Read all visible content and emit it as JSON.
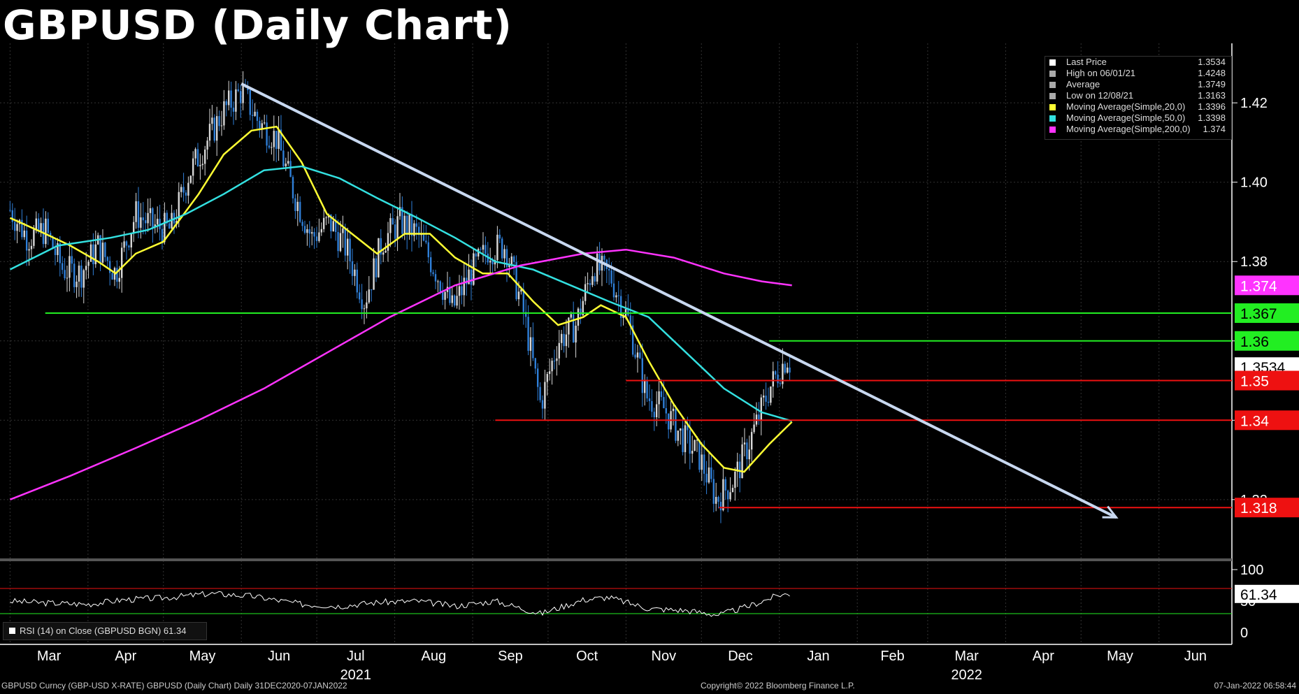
{
  "title": "GBPUSD (Daily Chart)",
  "chart_data": {
    "type": "candlestick",
    "title": "GBPUSD (Daily Chart)",
    "x_axis": {
      "months": [
        "Mar",
        "Apr",
        "May",
        "Jun",
        "Jul",
        "Aug",
        "Sep",
        "Oct",
        "Nov",
        "Dec",
        "Jan",
        "Feb",
        "Mar",
        "Apr",
        "May",
        "Jun"
      ],
      "years": [
        "2021",
        "2022"
      ]
    },
    "y_axis": {
      "ticks": [
        "1.42",
        "1.40",
        "1.38",
        "1.36",
        "1.34",
        "1.32"
      ],
      "range": [
        1.305,
        1.435
      ]
    },
    "legend": [
      {
        "name": "Last Price",
        "value": "1.3534",
        "color": "#ffffff"
      },
      {
        "name": "High on 06/01/21",
        "value": "1.4248",
        "color": "#aaaaaa"
      },
      {
        "name": "Average",
        "value": "1.3749",
        "color": "#aaaaaa"
      },
      {
        "name": "Low on 12/08/21",
        "value": "1.3163",
        "color": "#aaaaaa"
      },
      {
        "name": "Moving Average(Simple,20,0)",
        "value": "1.3396",
        "color": "#ffff33"
      },
      {
        "name": "Moving Average(Simple,50,0)",
        "value": "1.3398",
        "color": "#33e0e0"
      },
      {
        "name": "Moving Average(Simple,200,0)",
        "value": "1.374",
        "color": "#ff33ff"
      }
    ],
    "price_labels": [
      {
        "value": "1.374",
        "y": 1.374,
        "bg": "#ff33ff",
        "fg": "#ffffff"
      },
      {
        "value": "1.367",
        "y": 1.367,
        "bg": "#22ee22",
        "fg": "#000000"
      },
      {
        "value": "1.36",
        "y": 1.36,
        "bg": "#22ee22",
        "fg": "#000000"
      },
      {
        "value": "1.3534",
        "y": 1.3534,
        "bg": "#ffffff",
        "fg": "#000000"
      },
      {
        "value": "1.35",
        "y": 1.35,
        "bg": "#ee1111",
        "fg": "#ffffff"
      },
      {
        "value": "1.34",
        "y": 1.34,
        "bg": "#ee1111",
        "fg": "#ffffff"
      },
      {
        "value": "1.318",
        "y": 1.318,
        "bg": "#ee1111",
        "fg": "#ffffff"
      }
    ],
    "horizontal_levels": [
      {
        "y": 1.367,
        "x_from": "2021-03-15",
        "x_to": "2022-06-30",
        "color": "#22ee22"
      },
      {
        "y": 1.36,
        "x_from": "2021-12-28",
        "x_to": "2022-06-30",
        "color": "#22ee22"
      },
      {
        "y": 1.35,
        "x_from": "2021-11-01",
        "x_to": "2022-06-30",
        "color": "#ee1111"
      },
      {
        "y": 1.34,
        "x_from": "2021-09-10",
        "x_to": "2022-06-30",
        "color": "#ee1111"
      },
      {
        "y": 1.318,
        "x_from": "2021-12-08",
        "x_to": "2022-06-30",
        "color": "#ee1111"
      }
    ],
    "trendline": {
      "from": [
        "2021-06-01",
        1.4248
      ],
      "to": [
        "2022-05-15",
        1.3155
      ],
      "color": "#c8d8f0"
    },
    "series": [
      {
        "name": "Moving Average(Simple,20,0)",
        "color": "#ffff33",
        "points": [
          [
            "2021-03-01",
            1.391
          ],
          [
            "2021-03-15",
            1.387
          ],
          [
            "2021-03-25",
            1.384
          ],
          [
            "2021-04-05",
            1.38
          ],
          [
            "2021-04-12",
            1.377
          ],
          [
            "2021-04-20",
            1.382
          ],
          [
            "2021-05-01",
            1.385
          ],
          [
            "2021-05-15",
            1.397
          ],
          [
            "2021-05-25",
            1.407
          ],
          [
            "2021-06-05",
            1.413
          ],
          [
            "2021-06-15",
            1.414
          ],
          [
            "2021-06-25",
            1.405
          ],
          [
            "2021-07-05",
            1.392
          ],
          [
            "2021-07-15",
            1.387
          ],
          [
            "2021-07-25",
            1.382
          ],
          [
            "2021-08-05",
            1.387
          ],
          [
            "2021-08-15",
            1.387
          ],
          [
            "2021-08-25",
            1.381
          ],
          [
            "2021-09-05",
            1.377
          ],
          [
            "2021-09-15",
            1.377
          ],
          [
            "2021-09-25",
            1.37
          ],
          [
            "2021-10-05",
            1.364
          ],
          [
            "2021-10-15",
            1.366
          ],
          [
            "2021-10-22",
            1.369
          ],
          [
            "2021-11-01",
            1.366
          ],
          [
            "2021-11-10",
            1.355
          ],
          [
            "2021-11-20",
            1.344
          ],
          [
            "2021-12-01",
            1.334
          ],
          [
            "2021-12-10",
            1.328
          ],
          [
            "2021-12-18",
            1.327
          ],
          [
            "2021-12-28",
            1.334
          ],
          [
            "2022-01-06",
            1.3396
          ]
        ]
      },
      {
        "name": "Moving Average(Simple,50,0)",
        "color": "#33e0e0",
        "points": [
          [
            "2021-03-01",
            1.378
          ],
          [
            "2021-03-20",
            1.384
          ],
          [
            "2021-04-10",
            1.386
          ],
          [
            "2021-04-25",
            1.388
          ],
          [
            "2021-05-10",
            1.392
          ],
          [
            "2021-05-25",
            1.397
          ],
          [
            "2021-06-10",
            1.403
          ],
          [
            "2021-06-25",
            1.404
          ],
          [
            "2021-07-10",
            1.401
          ],
          [
            "2021-07-25",
            1.396
          ],
          [
            "2021-08-10",
            1.391
          ],
          [
            "2021-08-25",
            1.386
          ],
          [
            "2021-09-10",
            1.38
          ],
          [
            "2021-09-25",
            1.378
          ],
          [
            "2021-10-10",
            1.374
          ],
          [
            "2021-10-25",
            1.37
          ],
          [
            "2021-11-10",
            1.366
          ],
          [
            "2021-11-25",
            1.357
          ],
          [
            "2021-12-10",
            1.348
          ],
          [
            "2021-12-25",
            1.342
          ],
          [
            "2022-01-06",
            1.3398
          ]
        ]
      },
      {
        "name": "Moving Average(Simple,200,0)",
        "color": "#ff33ff",
        "points": [
          [
            "2021-03-01",
            1.32
          ],
          [
            "2021-03-25",
            1.326
          ],
          [
            "2021-04-20",
            1.333
          ],
          [
            "2021-05-15",
            1.34
          ],
          [
            "2021-06-10",
            1.348
          ],
          [
            "2021-07-05",
            1.357
          ],
          [
            "2021-07-30",
            1.366
          ],
          [
            "2021-08-25",
            1.374
          ],
          [
            "2021-09-20",
            1.379
          ],
          [
            "2021-10-15",
            1.382
          ],
          [
            "2021-11-01",
            1.383
          ],
          [
            "2021-11-20",
            1.381
          ],
          [
            "2021-12-10",
            1.377
          ],
          [
            "2021-12-25",
            1.375
          ],
          [
            "2022-01-06",
            1.374
          ]
        ]
      }
    ],
    "price_path": [
      [
        "2021-03-01",
        1.393
      ],
      [
        "2021-03-08",
        1.386
      ],
      [
        "2021-03-15",
        1.388
      ],
      [
        "2021-03-22",
        1.378
      ],
      [
        "2021-03-29",
        1.377
      ],
      [
        "2021-04-05",
        1.384
      ],
      [
        "2021-04-12",
        1.377
      ],
      [
        "2021-04-20",
        1.392
      ],
      [
        "2021-04-27",
        1.389
      ],
      [
        "2021-05-04",
        1.388
      ],
      [
        "2021-05-11",
        1.402
      ],
      [
        "2021-05-18",
        1.41
      ],
      [
        "2021-05-25",
        1.418
      ],
      [
        "2021-06-01",
        1.423
      ],
      [
        "2021-06-08",
        1.415
      ],
      [
        "2021-06-15",
        1.411
      ],
      [
        "2021-06-22",
        1.397
      ],
      [
        "2021-06-29",
        1.386
      ],
      [
        "2021-07-06",
        1.39
      ],
      [
        "2021-07-13",
        1.383
      ],
      [
        "2021-07-20",
        1.37
      ],
      [
        "2021-07-27",
        1.385
      ],
      [
        "2021-08-03",
        1.39
      ],
      [
        "2021-08-10",
        1.387
      ],
      [
        "2021-08-17",
        1.378
      ],
      [
        "2021-08-24",
        1.368
      ],
      [
        "2021-08-31",
        1.377
      ],
      [
        "2021-09-07",
        1.383
      ],
      [
        "2021-09-14",
        1.384
      ],
      [
        "2021-09-21",
        1.368
      ],
      [
        "2021-09-28",
        1.344
      ],
      [
        "2021-10-05",
        1.36
      ],
      [
        "2021-10-12",
        1.364
      ],
      [
        "2021-10-19",
        1.379
      ],
      [
        "2021-10-26",
        1.376
      ],
      [
        "2021-11-02",
        1.365
      ],
      [
        "2021-11-09",
        1.346
      ],
      [
        "2021-11-16",
        1.343
      ],
      [
        "2021-11-23",
        1.336
      ],
      [
        "2021-11-30",
        1.331
      ],
      [
        "2021-12-07",
        1.32
      ],
      [
        "2021-12-14",
        1.325
      ],
      [
        "2021-12-21",
        1.336
      ],
      [
        "2021-12-28",
        1.348
      ],
      [
        "2022-01-04",
        1.356
      ],
      [
        "2022-01-06",
        1.3534
      ]
    ],
    "rsi": {
      "label": "RSI (14)  on Close (GBPUSD BGN) 61.34",
      "value": "61.34",
      "ticks": [
        "100",
        "50",
        "0"
      ],
      "overbought": 70,
      "oversold": 30,
      "points": [
        [
          "2021-03-01",
          50
        ],
        [
          "2021-03-15",
          47
        ],
        [
          "2021-04-01",
          45
        ],
        [
          "2021-04-15",
          52
        ],
        [
          "2021-05-01",
          55
        ],
        [
          "2021-05-20",
          62
        ],
        [
          "2021-06-05",
          58
        ],
        [
          "2021-06-25",
          45
        ],
        [
          "2021-07-10",
          42
        ],
        [
          "2021-07-25",
          48
        ],
        [
          "2021-08-10",
          50
        ],
        [
          "2021-08-25",
          42
        ],
        [
          "2021-09-10",
          50
        ],
        [
          "2021-09-28",
          30
        ],
        [
          "2021-10-15",
          52
        ],
        [
          "2021-10-25",
          56
        ],
        [
          "2021-11-10",
          38
        ],
        [
          "2021-11-25",
          35
        ],
        [
          "2021-12-08",
          28
        ],
        [
          "2021-12-20",
          42
        ],
        [
          "2022-01-01",
          60
        ],
        [
          "2022-01-06",
          61.34
        ]
      ]
    }
  },
  "footer": {
    "left": "GBPUSD Curncy (GBP-USD X-RATE) GBPUSD (Daily Chart)  Daily 31DEC2020-07JAN2022",
    "center": "Copyright© 2022 Bloomberg Finance L.P.",
    "right": "07-Jan-2022 06:58:44"
  }
}
